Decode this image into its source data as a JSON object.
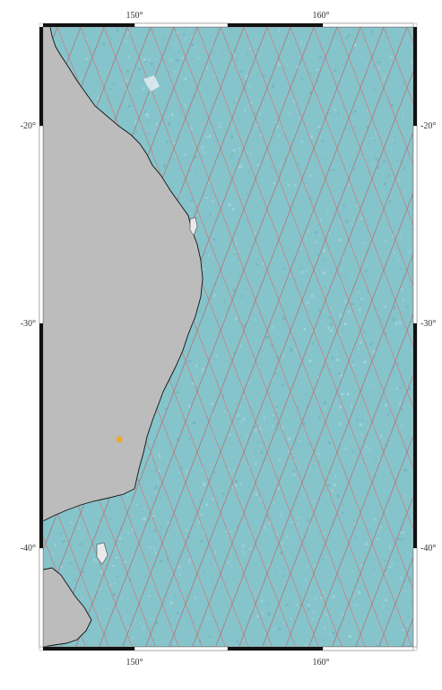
{
  "map": {
    "lon_labels": [
      "150°",
      "160°"
    ],
    "lat_labels": [
      "-20°",
      "-30°",
      "-40°"
    ],
    "colors": {
      "ocean": "#86c4cc",
      "land": "#bcbcbc",
      "track_ascending": "#c87f7f",
      "track_descending": "#b07272",
      "frame_dark": "#111111",
      "marker": "#f2a72a"
    },
    "marker_icon": "location-dot-icon"
  }
}
